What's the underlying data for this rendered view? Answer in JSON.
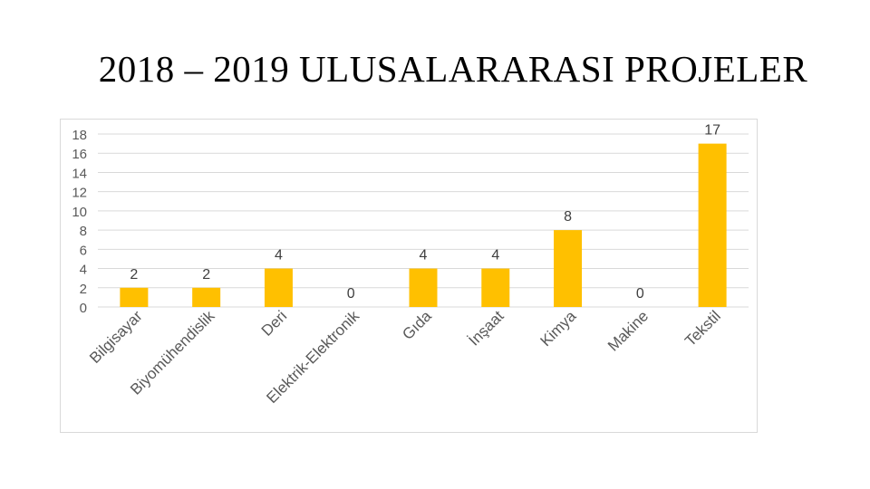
{
  "slide": {
    "title": "2018 – 2019 ULUSALARARASI PROJELER"
  },
  "colors": {
    "bar": "#ffc000",
    "grid": "#d9d9d9",
    "tick_text": "#595959",
    "label_text": "#404040"
  },
  "chart_data": {
    "type": "bar",
    "title": "",
    "xlabel": "",
    "ylabel": "",
    "ylim": [
      0,
      18
    ],
    "yticks": [
      "0",
      "2",
      "4",
      "6",
      "8",
      "10",
      "12",
      "14",
      "16",
      "18"
    ],
    "categories": [
      "Bilgisayar",
      "Biyomühendislik",
      "Deri",
      "Elektrik-Elektronik",
      "Gıda",
      "İnşaat",
      "Kimya",
      "Makine",
      "Tekstil"
    ],
    "values": [
      2,
      2,
      4,
      0,
      4,
      4,
      8,
      0,
      17
    ],
    "value_labels": [
      "2",
      "2",
      "4",
      "0",
      "4",
      "4",
      "8",
      "0",
      "17"
    ],
    "grid": true,
    "legend": "none"
  }
}
